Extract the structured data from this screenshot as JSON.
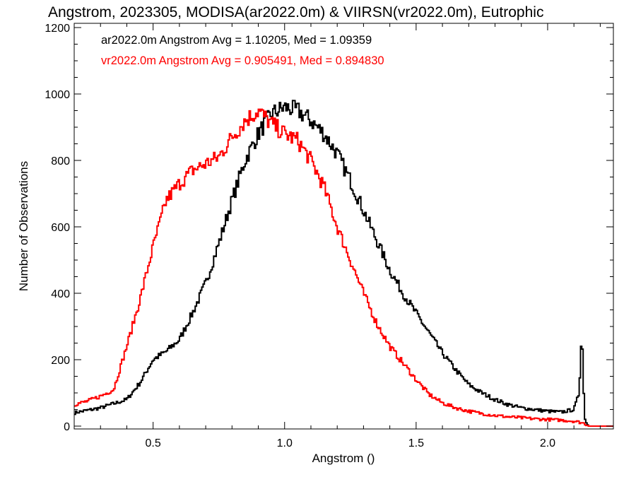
{
  "chart_data": {
    "type": "line",
    "title": "Angstrom, 2023305, MODISA(ar2022.0m) & VIIRSN(vr2022.0m), Eutrophic",
    "xlabel": "Angstrom ()",
    "ylabel": "Number of Observations",
    "xlim": [
      0.2,
      2.25
    ],
    "ylim": [
      0,
      1200
    ],
    "x_ticks": [
      0.5,
      1.0,
      1.5,
      2.0
    ],
    "x_tick_labels": [
      "0.5",
      "1.0",
      "1.5",
      "2.0"
    ],
    "y_ticks": [
      0,
      200,
      400,
      600,
      800,
      1000,
      1200
    ],
    "y_tick_labels": [
      "0",
      "200",
      "400",
      "600",
      "800",
      "1000",
      "1200"
    ],
    "grid": false,
    "legend": [
      {
        "text": "ar2022.0m Angstrom Avg = 1.10205, Med = 1.09359",
        "color": "#000000"
      },
      {
        "text": "vr2022.0m Angstrom Avg = 0.905491, Med = 0.894830",
        "color": "#ff0000"
      }
    ],
    "series": [
      {
        "color": "#000000",
        "x": [
          0.2,
          0.3,
          0.4,
          0.45,
          0.5,
          0.55,
          0.6,
          0.65,
          0.7,
          0.75,
          0.8,
          0.85,
          0.9,
          0.95,
          1.0,
          1.05,
          1.1,
          1.15,
          1.2,
          1.25,
          1.3,
          1.35,
          1.4,
          1.45,
          1.5,
          1.55,
          1.6,
          1.65,
          1.7,
          1.75,
          1.8,
          1.85,
          1.9,
          1.95,
          2.0,
          2.05,
          2.1,
          2.12,
          2.13,
          2.14,
          2.15,
          2.16,
          2.25
        ],
        "y": [
          40,
          55,
          80,
          130,
          200,
          225,
          260,
          340,
          430,
          550,
          680,
          800,
          880,
          940,
          960,
          950,
          920,
          880,
          820,
          740,
          650,
          560,
          470,
          400,
          340,
          280,
          220,
          170,
          125,
          100,
          80,
          65,
          55,
          50,
          45,
          42,
          50,
          100,
          300,
          30,
          5,
          0,
          0
        ]
      },
      {
        "color": "#ff0000",
        "x": [
          0.2,
          0.25,
          0.3,
          0.35,
          0.4,
          0.45,
          0.5,
          0.55,
          0.6,
          0.65,
          0.7,
          0.75,
          0.8,
          0.85,
          0.9,
          0.95,
          1.0,
          1.05,
          1.1,
          1.15,
          1.2,
          1.25,
          1.3,
          1.35,
          1.4,
          1.45,
          1.5,
          1.55,
          1.6,
          1.65,
          1.7,
          1.75,
          1.8,
          1.85,
          1.9,
          1.95,
          2.0,
          2.05,
          2.1,
          2.12,
          2.14,
          2.16,
          2.25
        ],
        "y": [
          65,
          75,
          90,
          110,
          240,
          380,
          540,
          680,
          730,
          770,
          790,
          810,
          870,
          920,
          950,
          910,
          880,
          860,
          800,
          720,
          600,
          500,
          400,
          310,
          240,
          190,
          140,
          95,
          70,
          55,
          45,
          38,
          32,
          28,
          25,
          22,
          20,
          18,
          15,
          12,
          8,
          0,
          0
        ]
      }
    ]
  }
}
